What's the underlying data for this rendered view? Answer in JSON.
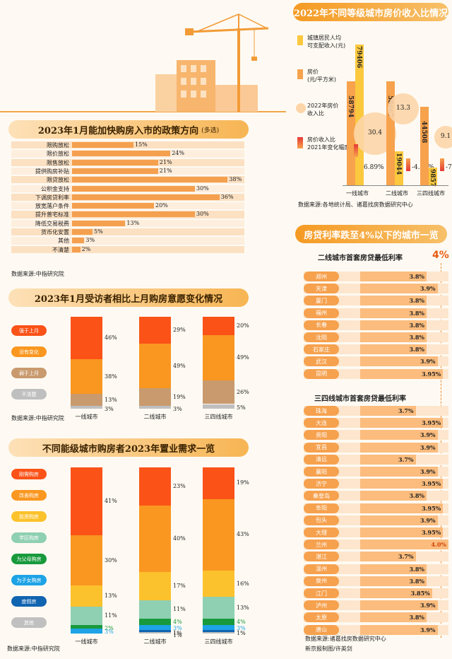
{
  "policy": {
    "title": "2023年1月能加快购房入市的政策方向",
    "subtitle": "(多选)",
    "source": "数据来源:中指研究院",
    "chart_data": {
      "type": "bar",
      "categories": [
        "限购放松",
        "限价放松",
        "限售放松",
        "提供购房补贴",
        "限贷放松",
        "公积金支持",
        "下调房贷利率",
        "放宽落户条件",
        "提升普宅标准",
        "降低交易税费",
        "货币化安置",
        "其他",
        "不清楚"
      ],
      "values": [
        15,
        24,
        21,
        21,
        38,
        30,
        36,
        20,
        30,
        13,
        5,
        3,
        2
      ],
      "labels": [
        "15%",
        "24%",
        "21%",
        "21%",
        "38%",
        "30%",
        "36%",
        "20%",
        "30%",
        "13%",
        "5%",
        "3%",
        "2%"
      ],
      "unit": "%"
    }
  },
  "change": {
    "title": "2023年1月受访者相比上月购房意愿变化情况",
    "source": "数据来源:中指研究院",
    "chart_data": {
      "type": "bar",
      "stacked": true,
      "categories": [
        "一线城市",
        "二线城市",
        "三四线城市"
      ],
      "series": [
        {
          "name": "强于上月",
          "color": "#fb5218",
          "values": [
            46,
            29,
            20
          ],
          "labels": [
            "46%",
            "29%",
            "20%"
          ]
        },
        {
          "name": "没有变化",
          "color": "#fa9720",
          "values": [
            38,
            49,
            49
          ],
          "labels": [
            "38%",
            "49%",
            "49%"
          ]
        },
        {
          "name": "弱于上月",
          "color": "#c89a6e",
          "values": [
            13,
            19,
            26
          ],
          "labels": [
            "13%",
            "19%",
            "26%"
          ]
        },
        {
          "name": "不清楚",
          "color": "#bfbfbf",
          "values": [
            3,
            3,
            5
          ],
          "labels": [
            "3%",
            "3%",
            "5%"
          ]
        }
      ]
    }
  },
  "demand": {
    "title": "不同能级城市购房者2023年置业需求一览",
    "source": "数据来源:中指研究院",
    "chart_data": {
      "type": "bar",
      "stacked": true,
      "categories": [
        "一线城市",
        "二线城市",
        "三四线城市"
      ],
      "series": [
        {
          "name": "刚需购房",
          "color": "#fb5218",
          "values": [
            41,
            23,
            19
          ],
          "labels": [
            "41%",
            "23%",
            "19%"
          ]
        },
        {
          "name": "改善购房",
          "color": "#fa9720",
          "values": [
            30,
            40,
            43
          ],
          "labels": [
            "30%",
            "40%",
            "43%"
          ]
        },
        {
          "name": "投资购房",
          "color": "#fcc22d",
          "values": [
            13,
            17,
            16
          ],
          "labels": [
            "13%",
            "17%",
            "16%"
          ]
        },
        {
          "name": "学区购房",
          "color": "#8fcfb2",
          "values": [
            11,
            11,
            13
          ],
          "labels": [
            "11%",
            "11%",
            "13%"
          ]
        },
        {
          "name": "为父母购房",
          "color": "#189a3c",
          "values": [
            2,
            4,
            4
          ],
          "labels": [
            "2%",
            "4%",
            "4%"
          ]
        },
        {
          "name": "为子女购房",
          "color": "#1da3e6",
          "values": [
            3,
            3,
            3
          ],
          "labels": [
            "3%",
            "3%",
            "3%"
          ]
        },
        {
          "name": "度假房",
          "color": "#1164b0",
          "values": [
            0,
            1,
            1
          ],
          "labels": [
            "",
            "1%",
            "1%"
          ]
        },
        {
          "name": "其他",
          "color": "#c0c0c0",
          "values": [
            0,
            1,
            1
          ],
          "labels": [
            "",
            "1%",
            ""
          ]
        }
      ]
    }
  },
  "income": {
    "title": "2022年不同等级城市房价收入比情况",
    "source": "数据来源:各地统计局、诸葛找房数据研究中心",
    "legend": {
      "income_l1": "城镇居民人均",
      "income_l2": "可支配收入(元)",
      "price_l1": "房价",
      "price_l2": "(元/平方米)",
      "ratio_l1": "2022年房价",
      "ratio_l2": "收入比",
      "change_l1": "房价收入比",
      "change_l2": "2021年变化幅度"
    },
    "colors": {
      "income": "#fbc83e",
      "price": "#f7a24d",
      "ratio": "#fcd5a8",
      "up": "#e53935"
    },
    "chart_data": {
      "type": "bar",
      "categories": [
        "一线城市",
        "二线城市",
        "三四线城市"
      ],
      "series": [
        {
          "name": "城镇居民人均可支配收入(元)",
          "values": [
            79406,
            19044,
            9857
          ],
          "labels": [
            "79406",
            "19044",
            "9857"
          ]
        },
        {
          "name": "房价(元/平方米)",
          "values": [
            58794,
            58667,
            44508
          ],
          "labels": [
            "58794",
            "58667",
            "44508"
          ]
        }
      ],
      "ratio": {
        "values": [
          30.4,
          13.3,
          9.1
        ],
        "labels": [
          "30.4",
          "13.3",
          "9.1"
        ]
      },
      "change": {
        "values": [
          6.89,
          -4.41,
          -7.16
        ],
        "labels": [
          "6.89%",
          "-4.41%",
          "-7.16%"
        ]
      }
    }
  },
  "rates": {
    "title": "房贷利率跌至4%以下的城市一览",
    "threshold": "4%",
    "credit": "新京报制图/许英剑",
    "source": "数据来源:诸葛找房数据研究中心",
    "second_tier": {
      "title": "二线城市首套房贷最低利率",
      "chart_data": {
        "type": "bar",
        "categories": [
          "郑州",
          "天津",
          "厦门",
          "福州",
          "长春",
          "沈阳",
          "石家庄",
          "武汉",
          "昆明"
        ],
        "values": [
          3.8,
          3.9,
          3.8,
          3.8,
          3.8,
          3.8,
          3.8,
          3.9,
          3.95
        ],
        "labels": [
          "3.8%",
          "3.9%",
          "3.8%",
          "3.8%",
          "3.8%",
          "3.8%",
          "3.8%",
          "3.9%",
          "3.95%"
        ]
      }
    },
    "third_tier": {
      "title": "三四线城市首套房贷最低利率",
      "chart_data": {
        "type": "bar",
        "categories": [
          "珠海",
          "大连",
          "贵阳",
          "宜昌",
          "清远",
          "襄阳",
          "济宁",
          "秦皇岛",
          "阜阳",
          "包头",
          "大理",
          "兰州",
          "湛江",
          "温州",
          "泉州",
          "江门",
          "泸州",
          "太原",
          "唐山"
        ],
        "values": [
          3.7,
          3.95,
          3.9,
          3.9,
          3.7,
          3.9,
          3.95,
          3.8,
          3.95,
          3.9,
          3.95,
          4.0,
          3.7,
          3.8,
          3.8,
          3.85,
          3.9,
          3.8,
          3.9
        ],
        "labels": [
          "3.7%",
          "3.95%",
          "3.9%",
          "3.9%",
          "3.7%",
          "3.9%",
          "3.95%",
          "3.8%",
          "3.95%",
          "3.9%",
          "3.95%",
          "4.0%",
          "3.7%",
          "3.8%",
          "3.8%",
          "3.85%",
          "3.9%",
          "3.8%",
          "3.9%"
        ]
      }
    }
  }
}
